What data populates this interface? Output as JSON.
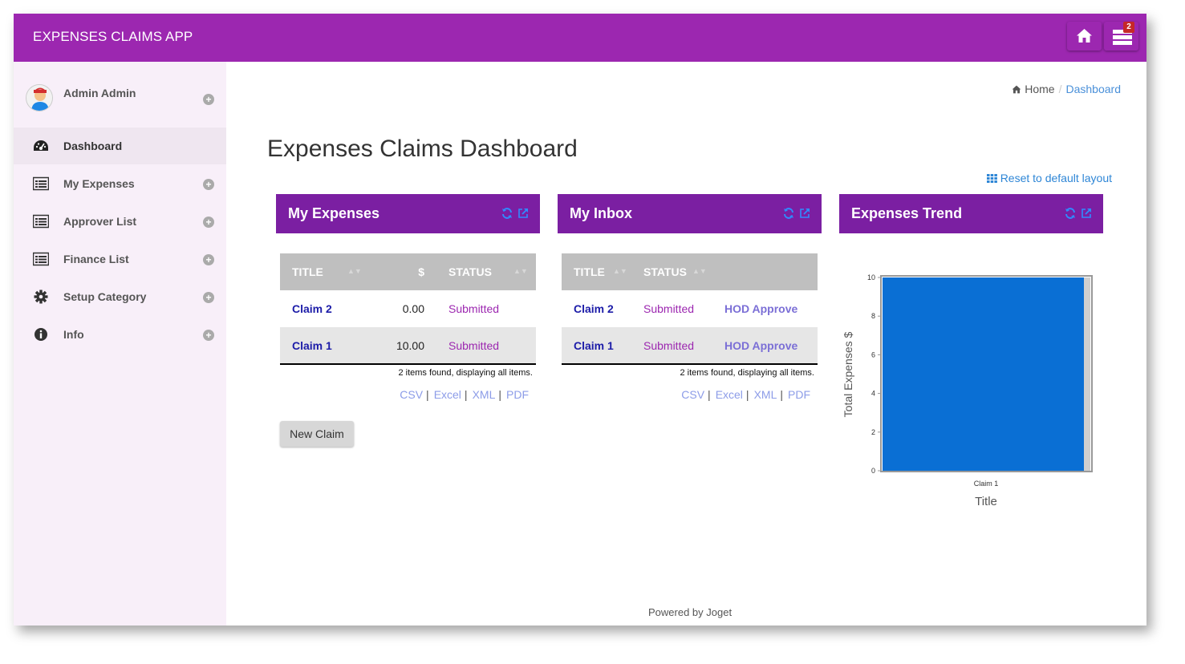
{
  "app": {
    "title": "EXPENSES CLAIMS APP",
    "badge_count": "2"
  },
  "user": {
    "name": "Admin Admin"
  },
  "sidebar": {
    "items": [
      {
        "label": "Dashboard",
        "icon": "dashboard-icon",
        "active": true
      },
      {
        "label": "My Expenses",
        "icon": "list-icon"
      },
      {
        "label": "Approver List",
        "icon": "list-icon"
      },
      {
        "label": "Finance List",
        "icon": "list-icon"
      },
      {
        "label": "Setup Category",
        "icon": "gear-icon"
      },
      {
        "label": "Info",
        "icon": "info-icon"
      }
    ]
  },
  "breadcrumb": {
    "home": "Home",
    "current": "Dashboard"
  },
  "page": {
    "title": "Expenses Claims Dashboard",
    "reset_label": "Reset to default layout",
    "footer": "Powered by Joget"
  },
  "my_expenses": {
    "title": "My Expenses",
    "columns": [
      "TITLE",
      "$",
      "STATUS"
    ],
    "rows": [
      {
        "title": "Claim 2",
        "amount": "0.00",
        "status": "Submitted"
      },
      {
        "title": "Claim 1",
        "amount": "10.00",
        "status": "Submitted"
      }
    ],
    "found": "2 items found, displaying all items.",
    "exports": [
      "CSV",
      "Excel",
      "XML",
      "PDF"
    ],
    "new_claim": "New Claim"
  },
  "my_inbox": {
    "title": "My Inbox",
    "columns": [
      "TITLE",
      "STATUS"
    ],
    "rows": [
      {
        "title": "Claim 2",
        "status": "Submitted",
        "action": "HOD Approve"
      },
      {
        "title": "Claim 1",
        "status": "Submitted",
        "action": "HOD Approve"
      }
    ],
    "found": "2 items found, displaying all items.",
    "exports": [
      "CSV",
      "Excel",
      "XML",
      "PDF"
    ]
  },
  "expenses_trend": {
    "title": "Expenses Trend"
  },
  "colors": {
    "topbar": "#9c27b0",
    "panel_header": "#7b1fa2",
    "bar": "#0a6fd4",
    "sidebar_bg": "#f8eff9"
  },
  "chart_data": {
    "type": "bar",
    "categories": [
      "Claim 1"
    ],
    "values": [
      10
    ],
    "xlabel": "Title",
    "ylabel": "Total Expenses $",
    "ylim": [
      0,
      10
    ],
    "yticks": [
      "0",
      "2",
      "4",
      "6",
      "8",
      "10"
    ],
    "grid": false
  }
}
